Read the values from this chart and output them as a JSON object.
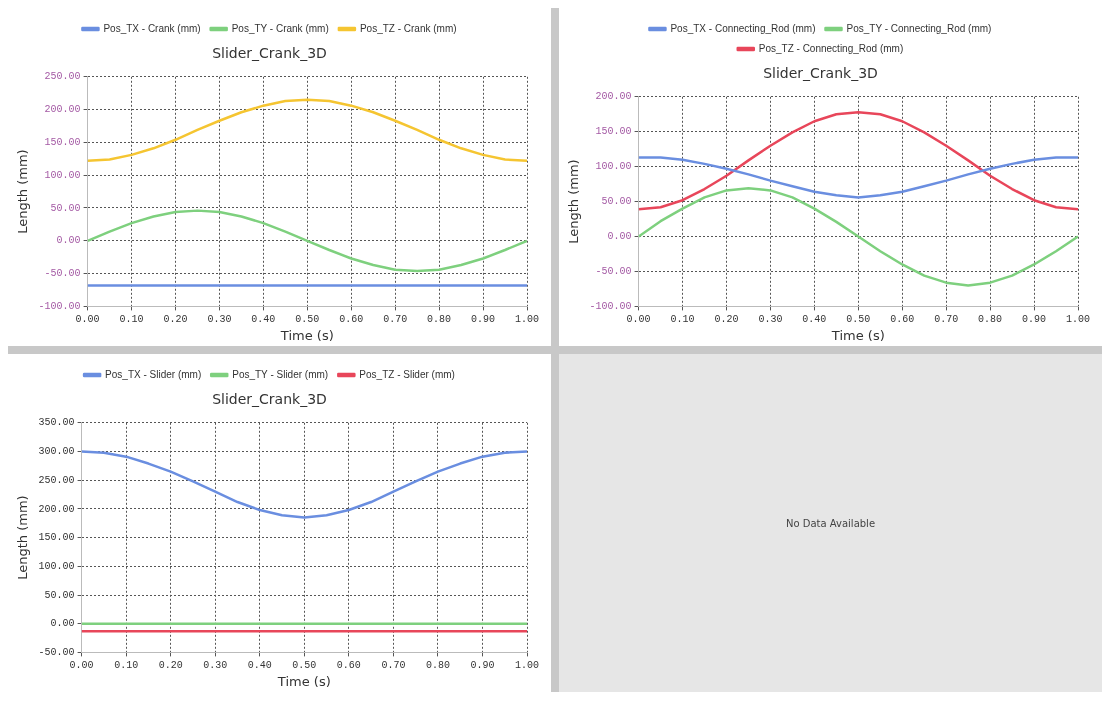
{
  "chart_data": [
    {
      "type": "line",
      "title": "Slider_Crank_3D",
      "xlabel": "Time (s)",
      "ylabel": "Length (mm)",
      "legend": "top",
      "grid": true,
      "marker": "none",
      "x": [
        0,
        0.05,
        0.1,
        0.15,
        0.2,
        0.25,
        0.3,
        0.35,
        0.4,
        0.45,
        0.5,
        0.55,
        0.6,
        0.65,
        0.7,
        0.75,
        0.8,
        0.85,
        0.9,
        0.95,
        1
      ],
      "xlim": [
        0,
        1
      ],
      "xticks": [
        {
          "value": 0,
          "label": "0.00"
        },
        {
          "value": 0.1,
          "label": "0.10"
        },
        {
          "value": 0.2,
          "label": "0.20"
        },
        {
          "value": 0.3,
          "label": "0.30"
        },
        {
          "value": 0.4,
          "label": "0.40"
        },
        {
          "value": 0.5,
          "label": "0.50"
        },
        {
          "value": 0.6,
          "label": "0.60"
        },
        {
          "value": 0.7,
          "label": "0.70"
        },
        {
          "value": 0.8,
          "label": "0.80"
        },
        {
          "value": 0.9,
          "label": "0.90"
        },
        {
          "value": 1,
          "label": "1.00"
        }
      ],
      "ylim": [
        -100,
        250
      ],
      "yticks": [
        {
          "value": -100,
          "label": "-100.00"
        },
        {
          "value": -50,
          "label": "-50.00"
        },
        {
          "value": 0,
          "label": "0.00"
        },
        {
          "value": 50,
          "label": "50.00"
        },
        {
          "value": 100,
          "label": "100.00"
        },
        {
          "value": 150,
          "label": "150.00"
        },
        {
          "value": 200,
          "label": "200.00"
        },
        {
          "value": 250,
          "label": "250.00"
        }
      ],
      "series": [
        {
          "name": "Pos_TX - Crank (mm)",
          "color": "#6a8ee0",
          "values": [
            -68,
            -68,
            -68,
            -68,
            -68,
            -68,
            -68,
            -68,
            -68,
            -68,
            -68,
            -68,
            -68,
            -68,
            -68,
            -68,
            -68,
            -68,
            -68,
            -68,
            -68
          ]
        },
        {
          "name": "Pos_TY - Crank (mm)",
          "color": "#7ed07e",
          "values": [
            0,
            14,
            27,
            37,
            44,
            46,
            44,
            37,
            27,
            14,
            0,
            -14,
            -27,
            -37,
            -44,
            -46,
            -44,
            -37,
            -27,
            -14,
            0
          ]
        },
        {
          "name": "Pos_TZ - Crank (mm)",
          "color": "#f5c531",
          "values": [
            122,
            124,
            131,
            141,
            154,
            169,
            183,
            196,
            206,
            213,
            215,
            213,
            206,
            196,
            183,
            169,
            154,
            141,
            131,
            124,
            122
          ]
        }
      ]
    },
    {
      "type": "line",
      "title": "Slider_Crank_3D",
      "xlabel": "Time (s)",
      "ylabel": "Length (mm)",
      "legend": "top",
      "grid": true,
      "marker": "none",
      "x": [
        0,
        0.05,
        0.1,
        0.15,
        0.2,
        0.25,
        0.3,
        0.35,
        0.4,
        0.45,
        0.5,
        0.55,
        0.6,
        0.65,
        0.7,
        0.75,
        0.8,
        0.85,
        0.9,
        0.95,
        1
      ],
      "xlim": [
        0,
        1
      ],
      "xticks": [
        {
          "value": 0,
          "label": "0.00"
        },
        {
          "value": 0.1,
          "label": "0.10"
        },
        {
          "value": 0.2,
          "label": "0.20"
        },
        {
          "value": 0.3,
          "label": "0.30"
        },
        {
          "value": 0.4,
          "label": "0.40"
        },
        {
          "value": 0.5,
          "label": "0.50"
        },
        {
          "value": 0.6,
          "label": "0.60"
        },
        {
          "value": 0.7,
          "label": "0.70"
        },
        {
          "value": 0.8,
          "label": "0.80"
        },
        {
          "value": 0.9,
          "label": "0.90"
        },
        {
          "value": 1,
          "label": "1.00"
        }
      ],
      "ylim": [
        -100,
        200
      ],
      "yticks": [
        {
          "value": -100,
          "label": "-100.00"
        },
        {
          "value": -50,
          "label": "-50.00"
        },
        {
          "value": 0,
          "label": "0.00"
        },
        {
          "value": 50,
          "label": "50.00"
        },
        {
          "value": 100,
          "label": "100.00"
        },
        {
          "value": 150,
          "label": "150.00"
        },
        {
          "value": 200,
          "label": "200.00"
        }
      ],
      "series": [
        {
          "name": "Pos_TX - Connecting_Rod (mm)",
          "color": "#6a8ee0",
          "values": [
            113,
            113,
            110,
            104,
            97,
            89,
            80,
            72,
            64,
            59,
            56,
            59,
            64,
            72,
            80,
            89,
            97,
            104,
            110,
            113,
            113
          ]
        },
        {
          "name": "Pos_TY - Connecting_Rod (mm)",
          "color": "#7ed07e",
          "values": [
            0,
            22,
            40,
            56,
            66,
            69,
            66,
            56,
            40,
            21,
            0,
            -21,
            -40,
            -56,
            -66,
            -70,
            -66,
            -56,
            -40,
            -21,
            0
          ]
        },
        {
          "name": "Pos_TZ - Connecting_Rod (mm)",
          "color": "#e8465a",
          "values": [
            39,
            42,
            52,
            68,
            87,
            109,
            130,
            149,
            165,
            175,
            178,
            175,
            165,
            149,
            130,
            109,
            87,
            68,
            52,
            42,
            39
          ]
        }
      ]
    },
    {
      "type": "line",
      "title": "Slider_Crank_3D",
      "xlabel": "Time (s)",
      "ylabel": "Length (mm)",
      "legend": "top",
      "grid": true,
      "marker": "none",
      "x": [
        0,
        0.05,
        0.1,
        0.15,
        0.2,
        0.25,
        0.3,
        0.35,
        0.4,
        0.45,
        0.5,
        0.55,
        0.6,
        0.65,
        0.7,
        0.75,
        0.8,
        0.85,
        0.9,
        0.95,
        1
      ],
      "xlim": [
        0,
        1
      ],
      "xticks": [
        {
          "value": 0,
          "label": "0.00"
        },
        {
          "value": 0.1,
          "label": "0.10"
        },
        {
          "value": 0.2,
          "label": "0.20"
        },
        {
          "value": 0.3,
          "label": "0.30"
        },
        {
          "value": 0.4,
          "label": "0.40"
        },
        {
          "value": 0.5,
          "label": "0.50"
        },
        {
          "value": 0.6,
          "label": "0.60"
        },
        {
          "value": 0.7,
          "label": "0.70"
        },
        {
          "value": 0.8,
          "label": "0.80"
        },
        {
          "value": 0.9,
          "label": "0.90"
        },
        {
          "value": 1,
          "label": "1.00"
        }
      ],
      "ylim": [
        -50,
        350
      ],
      "yticks": [
        {
          "value": -50,
          "label": "-50.00"
        },
        {
          "value": 0,
          "label": "0.00"
        },
        {
          "value": 50,
          "label": "50.00"
        },
        {
          "value": 100,
          "label": "100.00"
        },
        {
          "value": 150,
          "label": "150.00"
        },
        {
          "value": 200,
          "label": "200.00"
        },
        {
          "value": 250,
          "label": "250.00"
        },
        {
          "value": 300,
          "label": "300.00"
        },
        {
          "value": 350,
          "label": "350.00"
        }
      ],
      "series": [
        {
          "name": "Pos_TX - Slider (mm)",
          "color": "#6a8ee0",
          "values": [
            300,
            298,
            291,
            279,
            265,
            248,
            230,
            212,
            198,
            189,
            185,
            189,
            198,
            212,
            230,
            248,
            265,
            279,
            291,
            298,
            300
          ]
        },
        {
          "name": "Pos_TY - Slider (mm)",
          "color": "#7ed07e",
          "values": [
            0,
            0,
            0,
            0,
            0,
            0,
            0,
            0,
            0,
            0,
            0,
            0,
            0,
            0,
            0,
            0,
            0,
            0,
            0,
            0,
            0
          ]
        },
        {
          "name": "Pos_TZ - Slider (mm)",
          "color": "#e8465a",
          "values": [
            -13,
            -13,
            -13,
            -13,
            -13,
            -13,
            -13,
            -13,
            -13,
            -13,
            -13,
            -13,
            -13,
            -13,
            -13,
            -13,
            -13,
            -13,
            -13,
            -13,
            -13
          ]
        }
      ]
    },
    {
      "type": "other",
      "annotations": [
        "No Data Available"
      ]
    }
  ]
}
